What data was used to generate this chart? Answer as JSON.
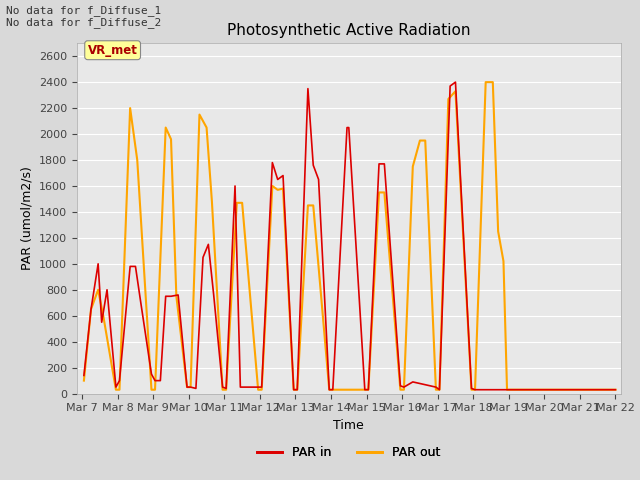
{
  "title": "Photosynthetic Active Radiation",
  "ylabel": "PAR (umol/m2/s)",
  "xlabel": "Time",
  "xlabels": [
    "Mar 7",
    "Mar 8",
    "Mar 9",
    "Mar 10",
    "Mar 11",
    "Mar 12",
    "Mar 13",
    "Mar 14",
    "Mar 15",
    "Mar 16",
    "Mar 17",
    "Mar 18",
    "Mar 19",
    "Mar 20",
    "Mar 21",
    "Mar 22"
  ],
  "ylim": [
    0,
    2700
  ],
  "yticks": [
    0,
    200,
    400,
    600,
    800,
    1000,
    1200,
    1400,
    1600,
    1800,
    2000,
    2200,
    2400,
    2600
  ],
  "par_in_color": "#dd0000",
  "par_out_color": "#ffa500",
  "fig_facecolor": "#d9d9d9",
  "ax_facecolor": "#e8e8e8",
  "annotation_text": "No data for f_Diffuse_1\nNo data for f_Diffuse_2",
  "vrmet_text": "VR_met",
  "vrmet_color": "#aa0000",
  "vrmet_bg": "#ffff99",
  "par_in_x": [
    0.05,
    0.25,
    0.45,
    0.55,
    0.7,
    0.95,
    1.05,
    1.35,
    1.5,
    1.65,
    1.95,
    2.05,
    2.2,
    2.35,
    2.5,
    2.7,
    2.95,
    3.05,
    3.2,
    3.4,
    3.55,
    3.7,
    3.95,
    4.05,
    4.3,
    4.45,
    4.95,
    5.05,
    5.35,
    5.5,
    5.65,
    5.95,
    6.05,
    6.35,
    6.5,
    6.65,
    6.95,
    7.05,
    7.45,
    7.5,
    7.95,
    8.05,
    8.35,
    8.5,
    8.95,
    9.05,
    9.3,
    9.95,
    10.05,
    10.35,
    10.5,
    10.95,
    11.05,
    11.95,
    12.05,
    12.95,
    13.05,
    13.95,
    14.05,
    14.95,
    15.0
  ],
  "par_in_y": [
    140,
    650,
    1000,
    550,
    800,
    50,
    100,
    980,
    980,
    700,
    150,
    100,
    100,
    750,
    750,
    760,
    50,
    50,
    40,
    1050,
    1150,
    760,
    50,
    40,
    1600,
    50,
    50,
    50,
    1780,
    1650,
    1680,
    30,
    30,
    2350,
    1760,
    1650,
    30,
    30,
    2050,
    2050,
    30,
    30,
    1770,
    1770,
    60,
    50,
    90,
    50,
    30,
    2370,
    2400,
    40,
    30,
    30,
    30,
    30,
    30,
    30,
    30,
    30,
    30
  ],
  "par_out_x": [
    0.05,
    0.25,
    0.45,
    0.6,
    0.95,
    1.05,
    1.35,
    1.55,
    1.95,
    2.05,
    2.35,
    2.5,
    2.65,
    2.95,
    3.05,
    3.3,
    3.5,
    3.65,
    3.95,
    4.05,
    4.35,
    4.5,
    4.95,
    5.05,
    5.35,
    5.5,
    5.65,
    5.95,
    6.05,
    6.35,
    6.5,
    6.95,
    7.05,
    7.95,
    8.05,
    8.35,
    8.5,
    8.95,
    9.05,
    9.3,
    9.5,
    9.65,
    9.95,
    10.05,
    10.3,
    10.5,
    10.95,
    11.05,
    11.35,
    11.55,
    11.7,
    11.85,
    11.95,
    12.05,
    12.95,
    13.05,
    13.95,
    14.05,
    14.95,
    15.0
  ],
  "par_out_y": [
    100,
    650,
    800,
    590,
    30,
    30,
    2200,
    1800,
    30,
    30,
    2050,
    1960,
    750,
    50,
    50,
    2150,
    2050,
    1480,
    30,
    30,
    1470,
    1470,
    30,
    30,
    1600,
    1570,
    1580,
    30,
    30,
    1450,
    1450,
    30,
    30,
    30,
    30,
    1550,
    1550,
    30,
    30,
    1750,
    1950,
    1950,
    30,
    30,
    2270,
    2330,
    30,
    30,
    2400,
    2400,
    1250,
    1020,
    30,
    30,
    30,
    30,
    30,
    30,
    30,
    30
  ]
}
